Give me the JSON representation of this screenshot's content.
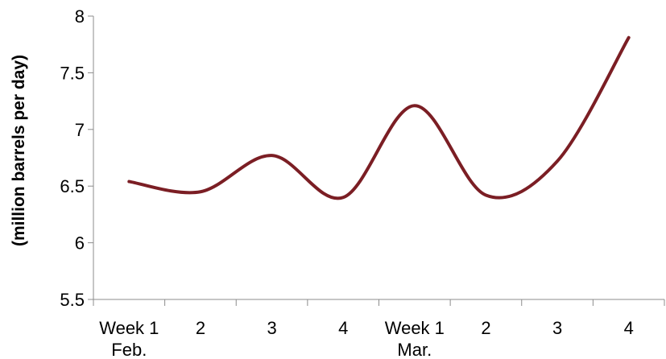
{
  "chart_data": {
    "type": "line",
    "ylabel": "(million barrels per day)",
    "xlabel": "",
    "ylim": [
      5.5,
      8
    ],
    "yticks": [
      "5.5",
      "6",
      "6.5",
      "7",
      "7.5",
      "8"
    ],
    "categories": [
      "Week 1",
      "2",
      "3",
      "4",
      "Week 1",
      "2",
      "3",
      "4"
    ],
    "group_labels": [
      "Feb.",
      "Mar."
    ],
    "smooth": true,
    "grid": false,
    "series": [
      {
        "color": "#7B1E24",
        "values": [
          6.54,
          6.45,
          6.77,
          6.4,
          7.21,
          6.42,
          6.72,
          7.81
        ]
      }
    ]
  }
}
